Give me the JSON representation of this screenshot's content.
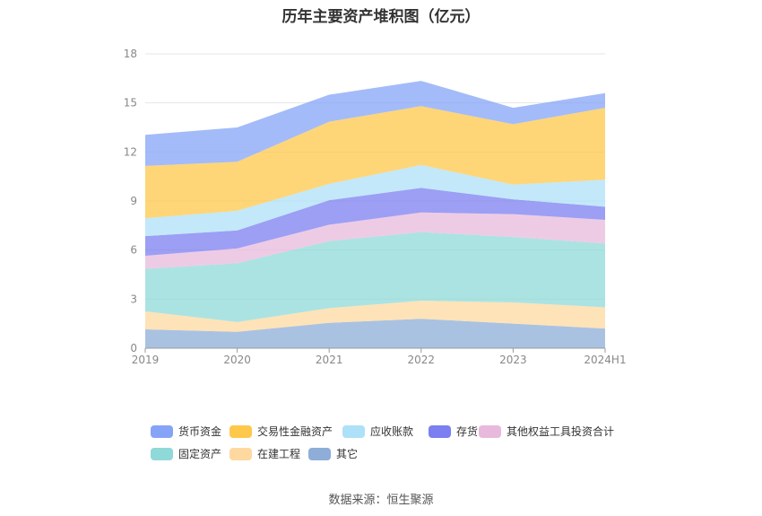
{
  "chart_data": {
    "type": "area",
    "stacked": true,
    "title": "历年主要资产堆积图（亿元）",
    "categories": [
      "2019",
      "2020",
      "2021",
      "2022",
      "2023",
      "2024H1"
    ],
    "yticks": [
      "0",
      "3",
      "6",
      "9",
      "12",
      "15",
      "18"
    ],
    "ylim": [
      0,
      18
    ],
    "xlabel": "",
    "ylabel": "",
    "series": [
      {
        "name": "其它",
        "color": "#8eadd8",
        "values": [
          1.15,
          1.0,
          1.55,
          1.8,
          1.5,
          1.2
        ]
      },
      {
        "name": "在建工程",
        "color": "#fdd9a0",
        "values": [
          1.1,
          0.6,
          0.9,
          1.1,
          1.3,
          1.3
        ]
      },
      {
        "name": "固定资产",
        "color": "#8fd9d8",
        "values": [
          2.6,
          3.6,
          4.1,
          4.2,
          4.0,
          3.9
        ]
      },
      {
        "name": "其他权益工具投资合计",
        "color": "#e8b9dc",
        "values": [
          0.8,
          0.9,
          1.0,
          1.2,
          1.4,
          1.45
        ]
      },
      {
        "name": "存货",
        "color": "#7b7ff0",
        "values": [
          1.2,
          1.1,
          1.5,
          1.5,
          0.9,
          0.8
        ]
      },
      {
        "name": "应收账款",
        "color": "#aee0f8",
        "values": [
          1.1,
          1.2,
          1.0,
          1.4,
          0.9,
          1.65
        ]
      },
      {
        "name": "交易性金融资产",
        "color": "#fdc84b",
        "values": [
          3.2,
          3.0,
          3.8,
          3.6,
          3.7,
          4.4
        ]
      },
      {
        "name": "货币资金",
        "color": "#86a4f7",
        "values": [
          1.9,
          2.1,
          1.65,
          1.55,
          1.0,
          0.9
        ]
      }
    ],
    "legend": {
      "order": [
        "货币资金",
        "交易性金融资产",
        "应收账款",
        "存货",
        "其他权益工具投资合计",
        "固定资产",
        "在建工程",
        "其它"
      ],
      "placement": "bottom"
    },
    "source": "数据来源：恒生聚源"
  }
}
